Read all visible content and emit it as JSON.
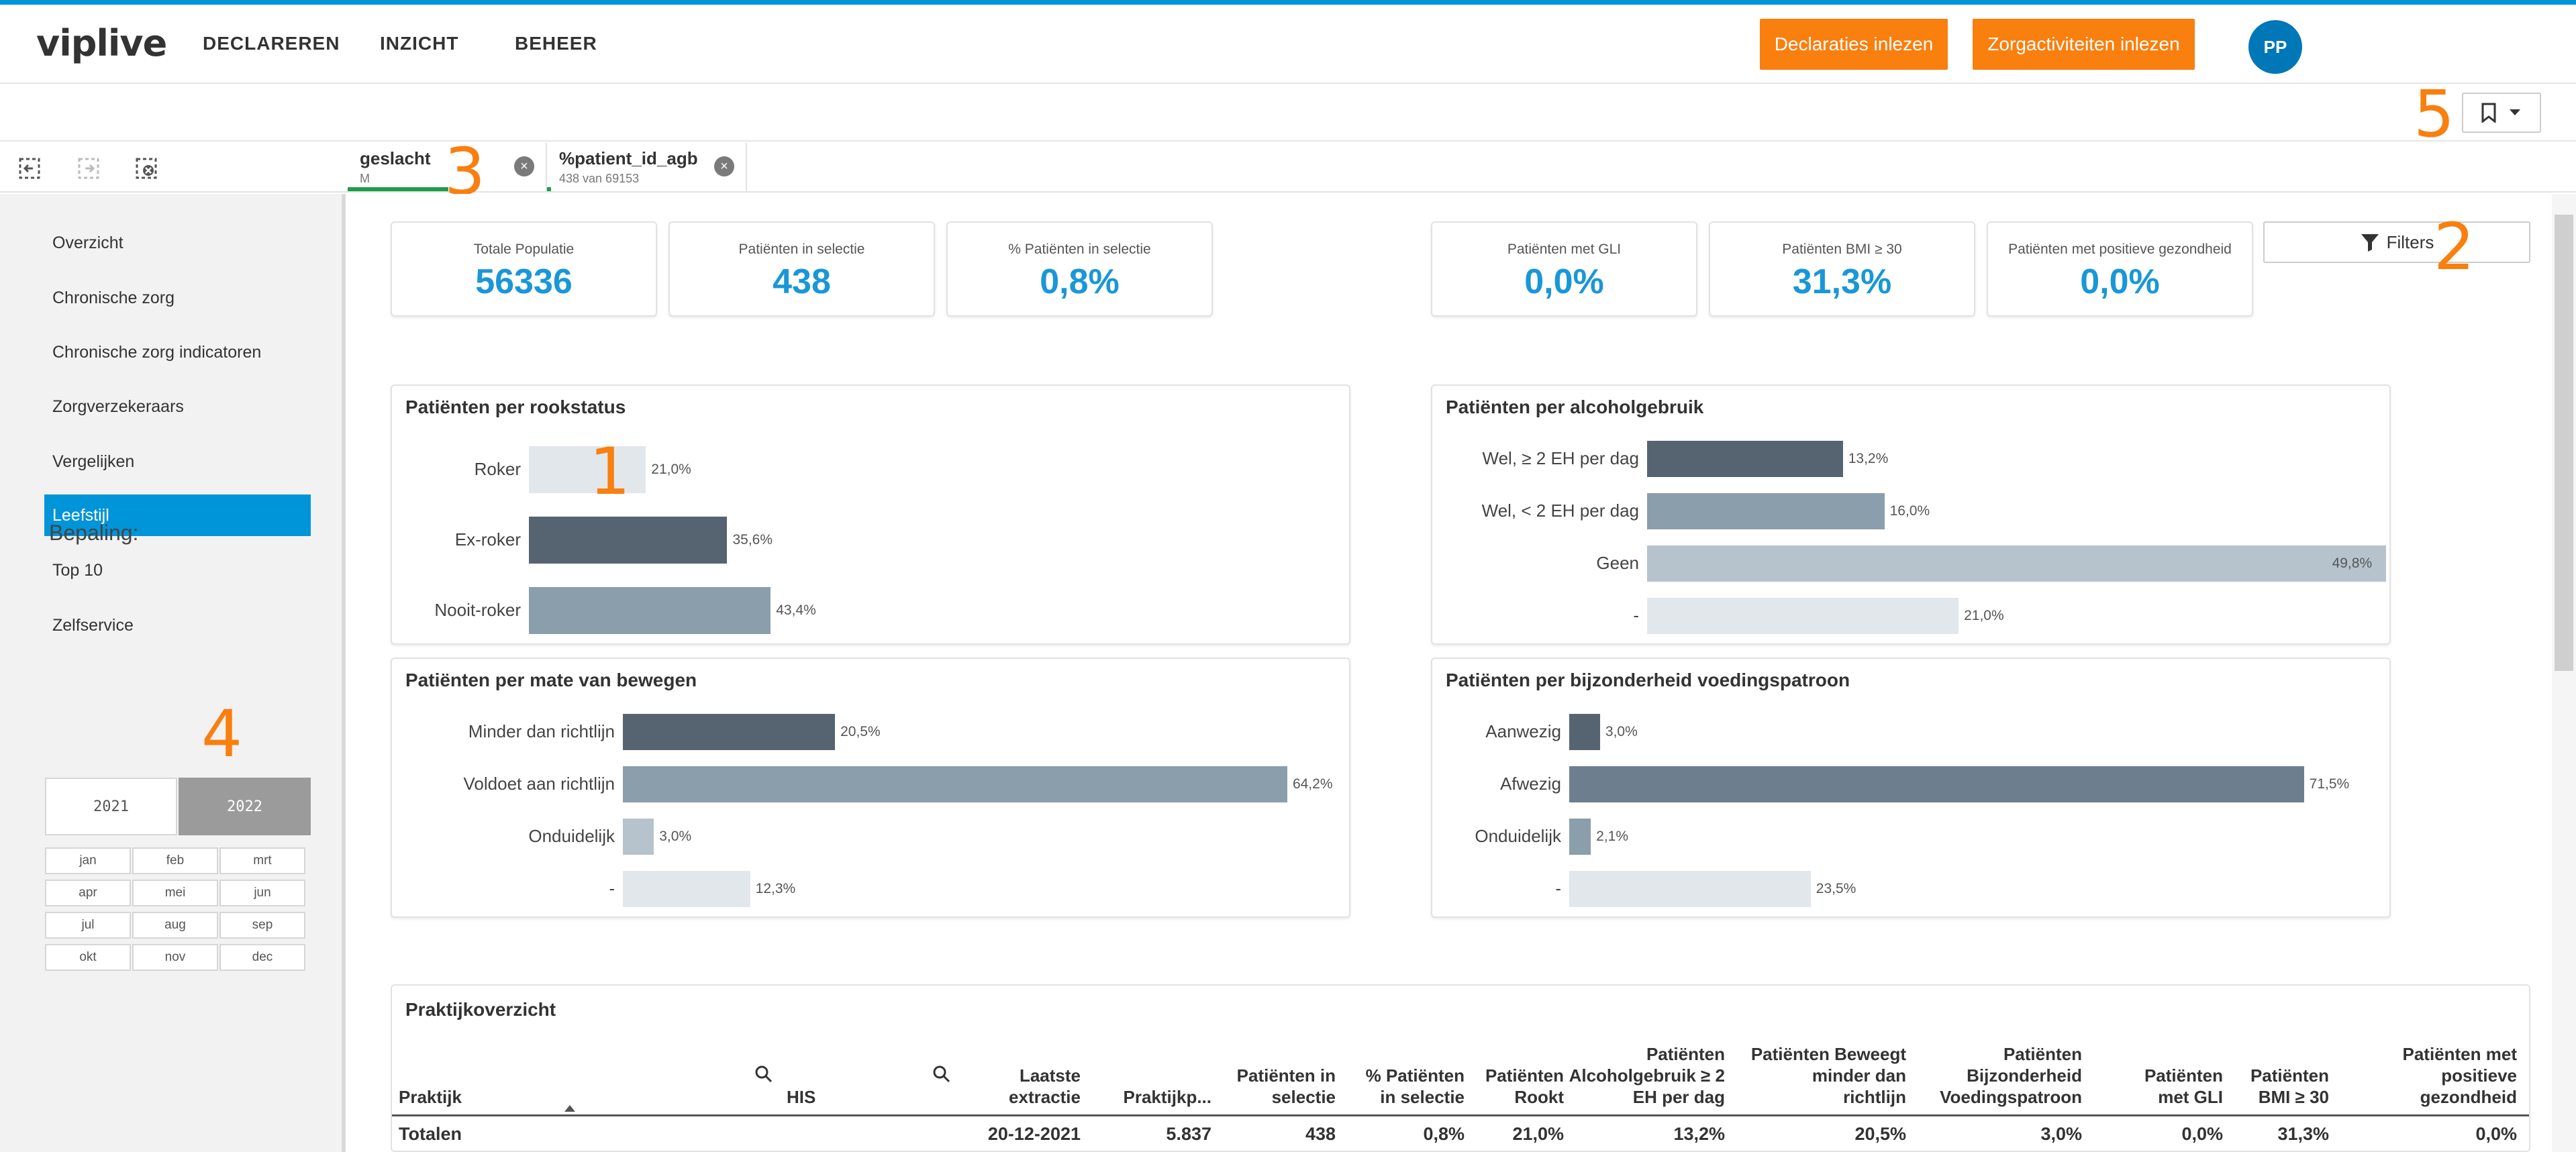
{
  "header": {
    "logo": "viplive",
    "nav": [
      "DECLAREREN",
      "INZICHT",
      "BEHEER"
    ],
    "btn_declaraties": "Declaraties inlezen",
    "btn_zorgactiviteiten": "Zorgactiviteiten inlezen",
    "avatar": "PP",
    "accent_color": "#0094d9",
    "button_color": "#f97f0f"
  },
  "markers": {
    "m1": "1",
    "m2": "2",
    "m3": "3",
    "m4": "4",
    "m5": "5"
  },
  "selections": [
    {
      "field": "geslacht",
      "value": "M"
    },
    {
      "field": "%patient_id_agb",
      "value": "438 van 69153"
    }
  ],
  "sidebar": {
    "items": [
      "Overzicht",
      "Chronische zorg",
      "Chronische zorg indicatoren",
      "Zorgverzekeraars",
      "Vergelijken",
      "Leefstijl",
      "Top 10",
      "Zelfservice"
    ],
    "active": "Leefstijl",
    "bepaling_label": "Bepaling:",
    "years": [
      "2021",
      "2022"
    ],
    "selected_year": "2022",
    "months": [
      "jan",
      "feb",
      "mrt",
      "apr",
      "mei",
      "jun",
      "jul",
      "aug",
      "sep",
      "okt",
      "nov",
      "dec"
    ]
  },
  "kpis": [
    {
      "label": "Totale Populatie",
      "value": "56336"
    },
    {
      "label": "Patiënten in selectie",
      "value": "438"
    },
    {
      "label": "% Patiënten in selectie",
      "value": "0,8%"
    },
    {
      "label": "Patiënten met GLI",
      "value": "0,0%"
    },
    {
      "label": "Patiënten BMI ≥ 30",
      "value": "31,3%"
    },
    {
      "label": "Patiënten met positieve gezondheid",
      "value": "0,0%"
    }
  ],
  "filters_label": "Filters",
  "chart_data": [
    {
      "type": "bar",
      "title": "Patiënten per rookstatus",
      "categories": [
        "Roker",
        "Ex-roker",
        "Nooit-roker"
      ],
      "values": [
        21.0,
        35.6,
        43.4
      ],
      "labels": [
        "21,0%",
        "35,6%",
        "43,4%"
      ],
      "colors": [
        "#e2e7ec",
        "#566472",
        "#8b9eab"
      ]
    },
    {
      "type": "bar",
      "title": "Patiënten per alcoholgebruik",
      "categories": [
        "Wel, ≥ 2 EH per dag",
        "Wel, < 2 EH per dag",
        "Geen",
        "-"
      ],
      "values": [
        13.2,
        16.0,
        49.8,
        21.0
      ],
      "labels": [
        "13,2%",
        "16,0%",
        "49,8%",
        "21,0%"
      ],
      "colors": [
        "#566472",
        "#8b9eab",
        "#b6c3cc",
        "#e2e7ec"
      ]
    },
    {
      "type": "bar",
      "title": "Patiënten per mate van bewegen",
      "categories": [
        "Minder dan richtlijn",
        "Voldoet aan richtlijn",
        "Onduidelijk",
        "-"
      ],
      "values": [
        20.5,
        64.2,
        3.0,
        12.3
      ],
      "labels": [
        "20,5%",
        "64,2%",
        "3,0%",
        "12,3%"
      ],
      "colors": [
        "#566472",
        "#8b9eab",
        "#b6c3cc",
        "#e2e7ec"
      ]
    },
    {
      "type": "bar",
      "title": "Patiënten per bijzonderheid voedingspatroon",
      "categories": [
        "Aanwezig",
        "Afwezig",
        "Onduidelijk",
        "-"
      ],
      "values": [
        3.0,
        71.5,
        2.1,
        23.5
      ],
      "labels": [
        "3,0%",
        "71,5%",
        "2,1%",
        "23,5%"
      ],
      "colors": [
        "#566472",
        "#6d7f8e",
        "#8b9eab",
        "#e2e7ec"
      ]
    }
  ],
  "table": {
    "title": "Praktijkoverzicht",
    "columns": [
      [
        "Praktijk"
      ],
      [
        "HIS"
      ],
      [
        "Laatste",
        "extractie"
      ],
      [
        "Praktijkp..."
      ],
      [
        "Patiënten in",
        "selectie"
      ],
      [
        "% Patiënten",
        "in selectie"
      ],
      [
        "Patiënten",
        "Rookt"
      ],
      [
        "Patiënten",
        "Alcoholgebruik ≥ 2",
        "EH per dag"
      ],
      [
        "Patiënten Beweegt",
        "minder dan",
        "richtlijn"
      ],
      [
        "Patiënten",
        "Bijzonderheid",
        "Voedingspatroon"
      ],
      [
        "Patiënten",
        "met GLI"
      ],
      [
        "Patiënten",
        "BMI ≥ 30"
      ],
      [
        "Patiënten met",
        "positieve",
        "gezondheid"
      ]
    ],
    "totals": [
      "Totalen",
      "",
      "20-12-2021",
      "5.837",
      "438",
      "0,8%",
      "21,0%",
      "13,2%",
      "20,5%",
      "3,0%",
      "0,0%",
      "31,3%",
      "0,0%"
    ]
  }
}
